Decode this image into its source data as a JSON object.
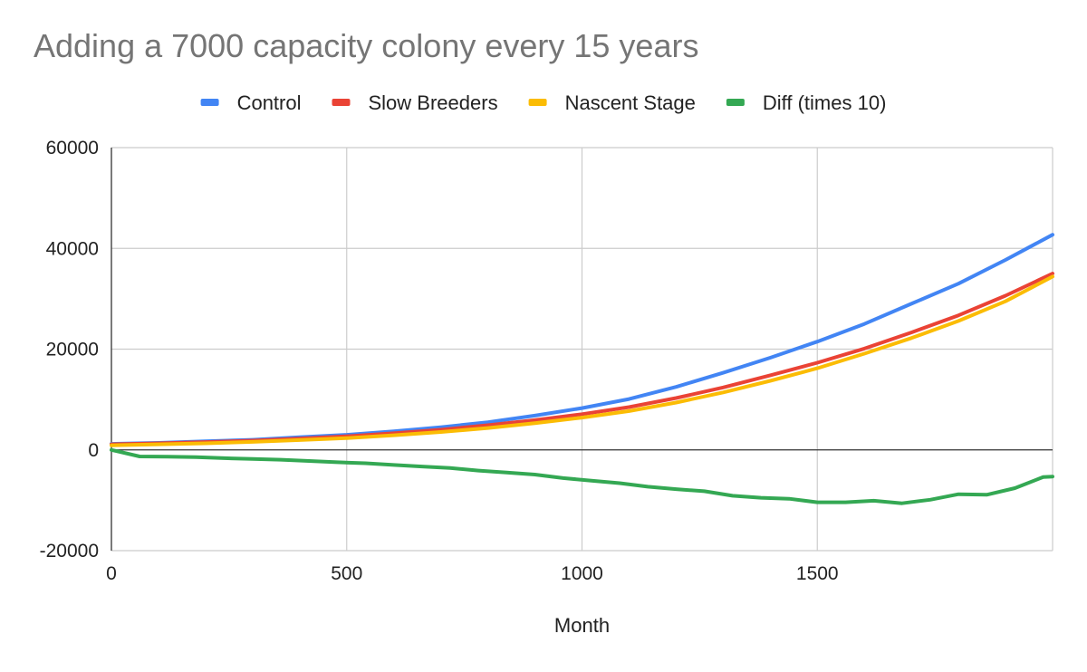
{
  "chart_data": {
    "type": "line",
    "title": "Adding a 7000 capacity colony every 15 years",
    "xlabel": "Month",
    "ylabel": "",
    "xlim": [
      0,
      2000
    ],
    "ylim": [
      -20000,
      60000
    ],
    "x_ticks": [
      "0",
      "500",
      "1000",
      "1500"
    ],
    "y_ticks": [
      "60000",
      "40000",
      "20000",
      "0",
      "-20000"
    ],
    "grid": true,
    "legend_position": "top",
    "series": [
      {
        "name": "Control",
        "color": "#4285F4",
        "x": [
          0,
          100,
          200,
          300,
          400,
          500,
          600,
          700,
          800,
          900,
          1000,
          1100,
          1200,
          1300,
          1400,
          1500,
          1600,
          1700,
          1800,
          1900,
          2000
        ],
        "y": [
          1200,
          1400,
          1700,
          2000,
          2500,
          3000,
          3700,
          4500,
          5500,
          6800,
          8300,
          10100,
          12500,
          15300,
          18300,
          21500,
          25000,
          29000,
          33000,
          37700,
          42700
        ]
      },
      {
        "name": "Slow Breeders",
        "color": "#EA4335",
        "x": [
          0,
          100,
          200,
          300,
          400,
          500,
          600,
          700,
          800,
          900,
          1000,
          1100,
          1200,
          1300,
          1400,
          1500,
          1600,
          1700,
          1800,
          1900,
          2000
        ],
        "y": [
          1100,
          1300,
          1550,
          1850,
          2250,
          2700,
          3300,
          4000,
          4900,
          5900,
          7100,
          8500,
          10300,
          12400,
          14800,
          17300,
          20100,
          23300,
          26700,
          30600,
          35000
        ]
      },
      {
        "name": "Nascent Stage",
        "color": "#FBBC04",
        "x": [
          0,
          100,
          200,
          300,
          400,
          500,
          600,
          700,
          800,
          900,
          1000,
          1100,
          1200,
          1300,
          1400,
          1500,
          1600,
          1700,
          1800,
          1900,
          2000
        ],
        "y": [
          900,
          1100,
          1300,
          1600,
          1950,
          2350,
          2900,
          3550,
          4350,
          5300,
          6400,
          7700,
          9400,
          11400,
          13700,
          16200,
          19100,
          22200,
          25600,
          29500,
          34400
        ]
      },
      {
        "name": "Diff (times 10)",
        "color": "#34A853",
        "x": [
          0,
          60,
          120,
          180,
          240,
          300,
          360,
          420,
          480,
          540,
          600,
          660,
          720,
          780,
          840,
          900,
          960,
          1020,
          1080,
          1140,
          1200,
          1260,
          1320,
          1380,
          1440,
          1500,
          1560,
          1620,
          1680,
          1740,
          1800,
          1860,
          1920,
          1980,
          2000
        ],
        "y": [
          0,
          -1300,
          -1350,
          -1450,
          -1650,
          -1800,
          -1950,
          -2200,
          -2450,
          -2650,
          -3000,
          -3300,
          -3600,
          -4100,
          -4500,
          -4900,
          -5600,
          -6100,
          -6600,
          -7300,
          -7800,
          -8200,
          -9100,
          -9500,
          -9700,
          -10400,
          -10400,
          -10100,
          -10600,
          -9900,
          -8800,
          -8900,
          -7600,
          -5400,
          -5300
        ]
      }
    ]
  }
}
